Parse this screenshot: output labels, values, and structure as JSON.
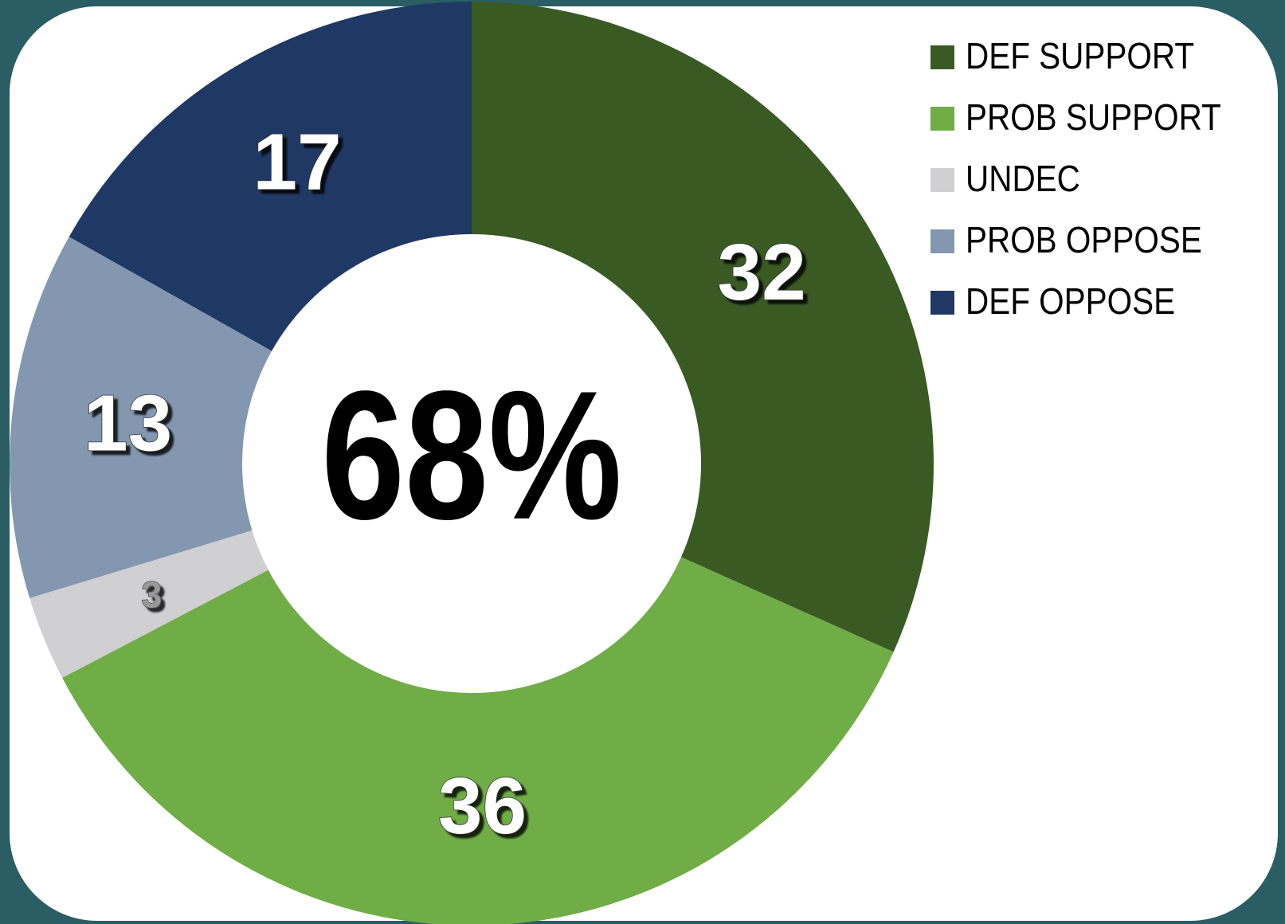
{
  "chart_data": {
    "type": "donut",
    "annotation": "68%",
    "categories": [
      "DEF SUPPORT",
      "PROB SUPPORT",
      "UNDEC",
      "PROB OPPOSE",
      "DEF OPPOSE"
    ],
    "values": [
      32,
      36,
      3,
      13,
      17
    ],
    "colors": [
      "#3a5a24",
      "#70ad47",
      "#d0cfd2",
      "#8497b0",
      "#203864"
    ],
    "legend": "top-right"
  }
}
